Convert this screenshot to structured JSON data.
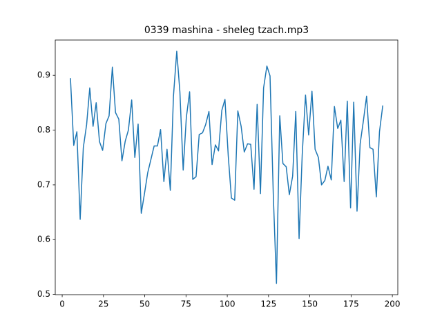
{
  "chart_data": {
    "type": "line",
    "title": "0339 mashina - sheleg tzach.mp3",
    "x": [
      5,
      7.0,
      8.9,
      10.9,
      12.8,
      14.8,
      16.7,
      18.7,
      20.6,
      22.6,
      24.5,
      26.5,
      28.4,
      30.4,
      32.3,
      34.3,
      36.2,
      38.2,
      40.1,
      42.1,
      44.0,
      46.0,
      47.9,
      49.9,
      51.8,
      53.8,
      55.7,
      57.7,
      59.6,
      61.6,
      63.5,
      65.5,
      67.4,
      69.4,
      71.3,
      73.3,
      75.2,
      77.2,
      79.1,
      81.1,
      83.0,
      85.0,
      86.9,
      88.9,
      90.8,
      92.8,
      94.7,
      96.7,
      98.6,
      100.6,
      102.5,
      104.5,
      106.4,
      108.4,
      110.3,
      112.3,
      114.2,
      116.2,
      118.1,
      120.1,
      122.0,
      124.0,
      125.9,
      127.9,
      129.8,
      131.8,
      133.7,
      135.7,
      137.6,
      139.6,
      141.5,
      143.5,
      145.4,
      147.4,
      149.3,
      151.3,
      153.2,
      155.2,
      157.1,
      159.1,
      161.0,
      163.0,
      164.9,
      166.9,
      168.8,
      170.8,
      172.7,
      174.7,
      176.6,
      178.6,
      180.5,
      182.5,
      184.4,
      186.4,
      188.3,
      190.3,
      192.2,
      194.2
    ],
    "series": [
      {
        "color": "#1f77b4",
        "values": [
          0.895,
          0.772,
          0.797,
          0.637,
          0.768,
          0.81,
          0.877,
          0.807,
          0.85,
          0.779,
          0.763,
          0.812,
          0.826,
          0.915,
          0.832,
          0.82,
          0.744,
          0.78,
          0.8,
          0.855,
          0.75,
          0.811,
          0.648,
          0.685,
          0.722,
          0.747,
          0.771,
          0.771,
          0.801,
          0.706,
          0.765,
          0.69,
          0.862,
          0.944,
          0.87,
          0.727,
          0.823,
          0.87,
          0.71,
          0.715,
          0.792,
          0.795,
          0.81,
          0.834,
          0.737,
          0.773,
          0.762,
          0.836,
          0.856,
          0.753,
          0.676,
          0.672,
          0.835,
          0.807,
          0.76,
          0.775,
          0.774,
          0.692,
          0.847,
          0.684,
          0.877,
          0.917,
          0.899,
          0.68,
          0.52,
          0.826,
          0.739,
          0.733,
          0.682,
          0.716,
          0.834,
          0.602,
          0.755,
          0.864,
          0.791,
          0.871,
          0.765,
          0.75,
          0.7,
          0.708,
          0.734,
          0.709,
          0.843,
          0.803,
          0.818,
          0.706,
          0.853,
          0.658,
          0.851,
          0.652,
          0.775,
          0.818,
          0.862,
          0.768,
          0.765,
          0.678,
          0.797,
          0.845
        ]
      }
    ],
    "xlim": [
      -4.2,
      203.3
    ],
    "ylim": [
      0.4995,
      0.9645
    ],
    "xticks": [
      0,
      25,
      50,
      75,
      100,
      125,
      150,
      175,
      200
    ],
    "yticks": [
      0.5,
      0.6,
      0.7,
      0.8,
      0.9
    ]
  }
}
